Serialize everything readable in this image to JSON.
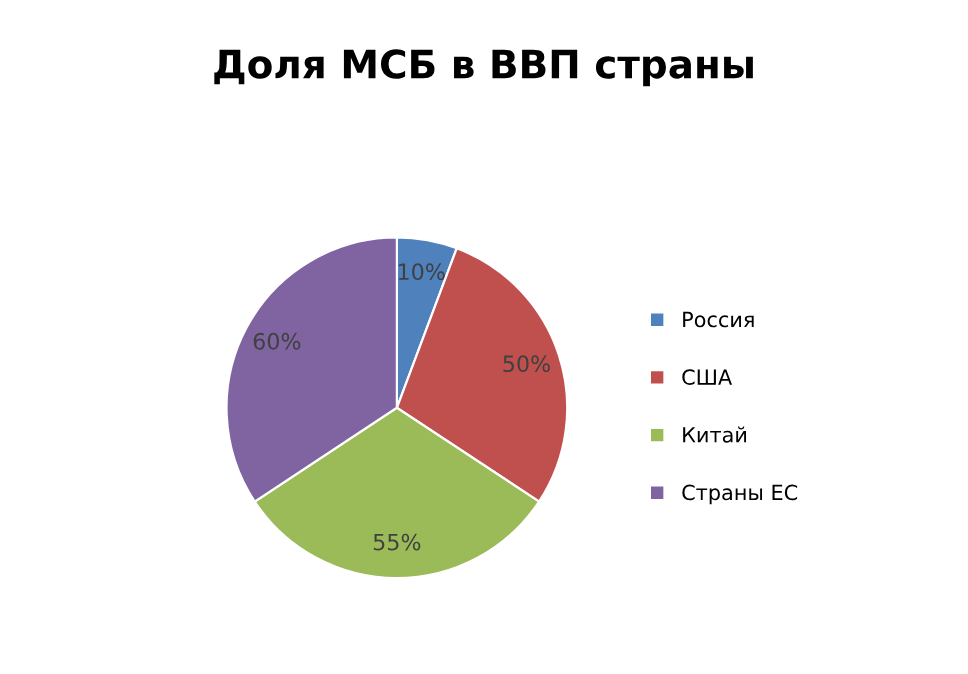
{
  "chart_data": {
    "type": "pie",
    "title": "Доля МСБ в ВВП страны",
    "categories": [
      "Россия",
      "США",
      "Китай",
      "Страны ЕС"
    ],
    "values": [
      10,
      50,
      55,
      60
    ],
    "value_labels": [
      "10%",
      "50%",
      "55%",
      "60%"
    ],
    "colors": [
      "#4f81bd",
      "#c0504d",
      "#9bbb59",
      "#8064a2"
    ],
    "legend": "right"
  }
}
